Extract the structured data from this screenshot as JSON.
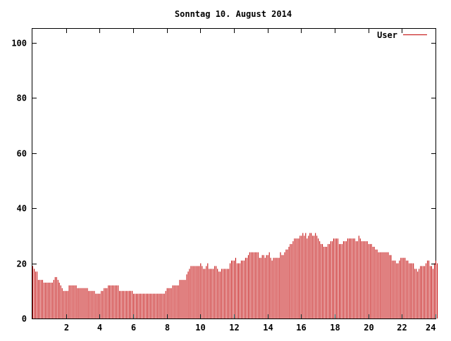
{
  "chart_data": {
    "type": "bar",
    "title": "Sonntag 10. August 2014",
    "xlabel": "",
    "ylabel": "",
    "xlim": [
      0,
      24
    ],
    "ylim": [
      0,
      105
    ],
    "x_ticks": [
      2,
      4,
      6,
      8,
      10,
      12,
      14,
      16,
      18,
      20,
      22,
      24
    ],
    "y_ticks": [
      0,
      20,
      40,
      60,
      80,
      100
    ],
    "grid": false,
    "legend_position": "top-right",
    "interval_minutes": 5,
    "series": [
      {
        "name": "User",
        "color": "#c00000",
        "values": [
          19,
          18,
          17,
          17,
          14,
          14,
          14,
          14,
          13,
          13,
          13,
          13,
          13,
          13,
          13,
          14,
          15,
          15,
          14,
          13,
          12,
          11,
          10,
          10,
          10,
          10,
          12,
          12,
          12,
          12,
          12,
          12,
          11,
          11,
          11,
          11,
          11,
          11,
          11,
          11,
          10,
          10,
          10,
          10,
          10,
          9,
          9,
          9,
          9,
          10,
          10,
          11,
          11,
          11,
          12,
          12,
          12,
          12,
          12,
          12,
          12,
          12,
          10,
          10,
          10,
          10,
          10,
          10,
          10,
          10,
          10,
          10,
          9,
          9,
          9,
          9,
          9,
          9,
          9,
          9,
          9,
          9,
          9,
          9,
          9,
          9,
          9,
          9,
          9,
          9,
          9,
          9,
          9,
          9,
          9,
          10,
          11,
          11,
          11,
          11,
          12,
          12,
          12,
          12,
          12,
          14,
          14,
          14,
          14,
          14,
          16,
          17,
          18,
          19,
          19,
          19,
          19,
          19,
          19,
          19,
          20,
          19,
          18,
          18,
          19,
          20,
          18,
          18,
          18,
          18,
          19,
          19,
          18,
          17,
          17,
          18,
          18,
          18,
          18,
          18,
          18,
          20,
          21,
          21,
          21,
          22,
          20,
          20,
          20,
          21,
          21,
          21,
          22,
          22,
          23,
          24,
          24,
          24,
          24,
          24,
          24,
          24,
          22,
          22,
          23,
          23,
          22,
          23,
          23,
          24,
          22,
          21,
          22,
          22,
          22,
          22,
          22,
          24,
          23,
          23,
          24,
          25,
          25,
          26,
          27,
          27,
          28,
          29,
          29,
          29,
          29,
          30,
          30,
          31,
          30,
          31,
          29,
          30,
          31,
          31,
          30,
          30,
          31,
          30,
          29,
          28,
          27,
          27,
          26,
          26,
          26,
          27,
          27,
          28,
          28,
          29,
          29,
          29,
          29,
          27,
          27,
          27,
          28,
          28,
          28,
          29,
          29,
          29,
          29,
          29,
          29,
          28,
          28,
          30,
          29,
          28,
          28,
          28,
          28,
          28,
          27,
          27,
          27,
          26,
          26,
          25,
          25,
          24,
          24,
          24,
          24,
          24,
          24,
          24,
          24,
          23,
          23,
          21,
          21,
          21,
          20,
          20,
          21,
          22,
          22,
          22,
          22,
          21,
          21,
          20,
          20,
          20,
          20,
          18,
          18,
          17,
          18,
          19,
          19,
          19,
          19,
          20,
          21,
          21,
          19,
          19,
          18,
          20,
          21,
          20
        ]
      }
    ]
  }
}
